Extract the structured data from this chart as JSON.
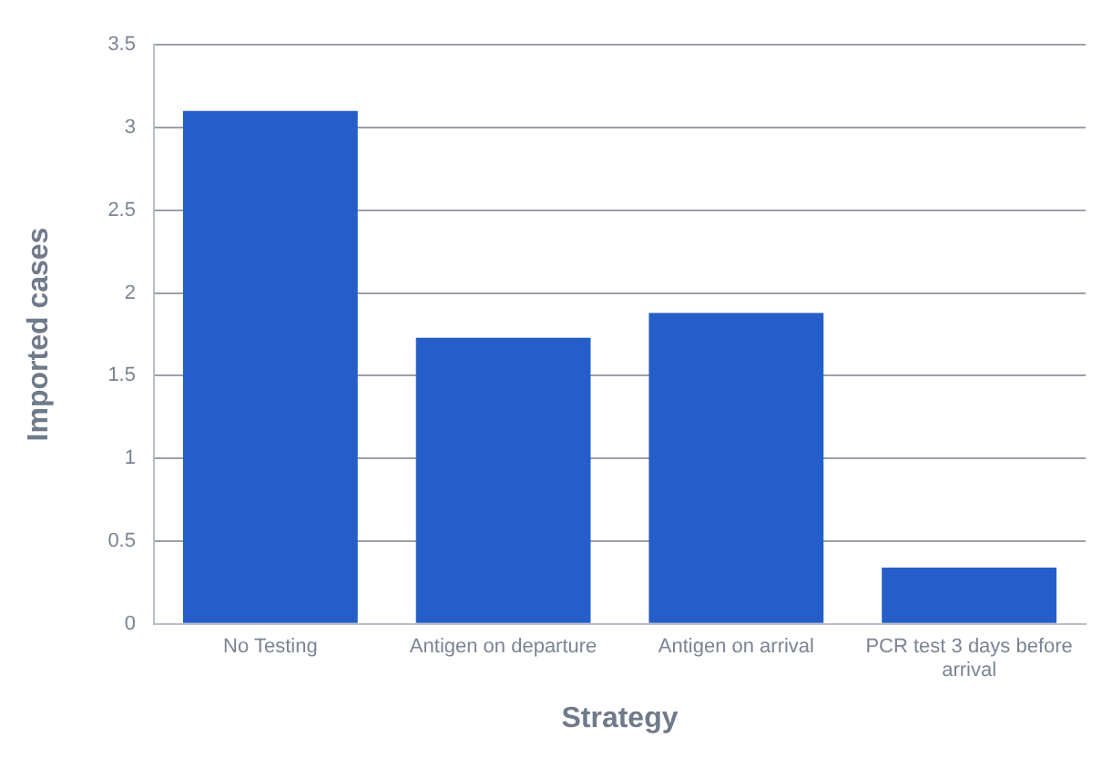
{
  "chart_data": {
    "type": "bar",
    "xlabel": "Strategy",
    "ylabel": "Imported cases",
    "categories": [
      "No Testing",
      "Antigen on departure",
      "Antigen on arrival",
      [
        "PCR test 3 days before",
        "arrival"
      ]
    ],
    "values": [
      3.1,
      1.73,
      1.88,
      0.34
    ],
    "color": "#255ec9",
    "ylim": [
      0,
      3.5
    ],
    "yticks": [
      0,
      0.5,
      1,
      1.5,
      2,
      2.5,
      3,
      3.5
    ],
    "grid": "y",
    "legend": false
  }
}
